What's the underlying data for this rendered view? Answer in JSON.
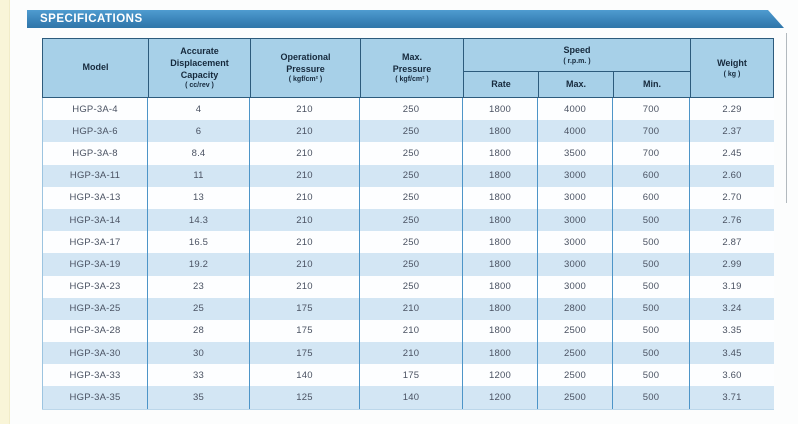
{
  "banner": {
    "label": "SPECIFICATIONS"
  },
  "table": {
    "headers": {
      "model": {
        "label": "Model"
      },
      "capacity": {
        "label": "Accurate\nDisplacement\nCapacity",
        "unit": "( cc/rev )"
      },
      "operational_pressure": {
        "label": "Operational\nPressure",
        "unit": "( kgf/cm² )"
      },
      "max_pressure": {
        "label": "Max.\nPressure",
        "unit": "( kgf/cm² )"
      },
      "speed": {
        "label": "Speed",
        "unit": "( r.p.m. )",
        "sub": {
          "rate": "Rate",
          "max": "Max.",
          "min": "Min."
        }
      },
      "weight": {
        "label": "Weight",
        "unit": "( kg )"
      }
    },
    "rows": [
      {
        "model": "HGP-3A-4",
        "capacity": "4",
        "op_pressure": "210",
        "max_pressure": "250",
        "rate": "1800",
        "max": "4000",
        "min": "700",
        "weight": "2.29"
      },
      {
        "model": "HGP-3A-6",
        "capacity": "6",
        "op_pressure": "210",
        "max_pressure": "250",
        "rate": "1800",
        "max": "4000",
        "min": "700",
        "weight": "2.37"
      },
      {
        "model": "HGP-3A-8",
        "capacity": "8.4",
        "op_pressure": "210",
        "max_pressure": "250",
        "rate": "1800",
        "max": "3500",
        "min": "700",
        "weight": "2.45"
      },
      {
        "model": "HGP-3A-11",
        "capacity": "11",
        "op_pressure": "210",
        "max_pressure": "250",
        "rate": "1800",
        "max": "3000",
        "min": "600",
        "weight": "2.60"
      },
      {
        "model": "HGP-3A-13",
        "capacity": "13",
        "op_pressure": "210",
        "max_pressure": "250",
        "rate": "1800",
        "max": "3000",
        "min": "600",
        "weight": "2.70"
      },
      {
        "model": "HGP-3A-14",
        "capacity": "14.3",
        "op_pressure": "210",
        "max_pressure": "250",
        "rate": "1800",
        "max": "3000",
        "min": "500",
        "weight": "2.76"
      },
      {
        "model": "HGP-3A-17",
        "capacity": "16.5",
        "op_pressure": "210",
        "max_pressure": "250",
        "rate": "1800",
        "max": "3000",
        "min": "500",
        "weight": "2.87"
      },
      {
        "model": "HGP-3A-19",
        "capacity": "19.2",
        "op_pressure": "210",
        "max_pressure": "250",
        "rate": "1800",
        "max": "3000",
        "min": "500",
        "weight": "2.99"
      },
      {
        "model": "HGP-3A-23",
        "capacity": "23",
        "op_pressure": "210",
        "max_pressure": "250",
        "rate": "1800",
        "max": "3000",
        "min": "500",
        "weight": "3.19"
      },
      {
        "model": "HGP-3A-25",
        "capacity": "25",
        "op_pressure": "175",
        "max_pressure": "210",
        "rate": "1800",
        "max": "2800",
        "min": "500",
        "weight": "3.24"
      },
      {
        "model": "HGP-3A-28",
        "capacity": "28",
        "op_pressure": "175",
        "max_pressure": "210",
        "rate": "1800",
        "max": "2500",
        "min": "500",
        "weight": "3.35"
      },
      {
        "model": "HGP-3A-30",
        "capacity": "30",
        "op_pressure": "175",
        "max_pressure": "210",
        "rate": "1800",
        "max": "2500",
        "min": "500",
        "weight": "3.45"
      },
      {
        "model": "HGP-3A-33",
        "capacity": "33",
        "op_pressure": "140",
        "max_pressure": "175",
        "rate": "1200",
        "max": "2500",
        "min": "500",
        "weight": "3.60"
      },
      {
        "model": "HGP-3A-35",
        "capacity": "35",
        "op_pressure": "125",
        "max_pressure": "140",
        "rate": "1200",
        "max": "2500",
        "min": "500",
        "weight": "3.71"
      }
    ]
  },
  "colors": {
    "banner_blue": "#3b85ba",
    "header_fill": "#a7d0e8",
    "header_border": "#2d5b7c",
    "header_text": "#16293c",
    "row_alt_fill": "#d3e6f4",
    "row_fill": "#fdfeff",
    "grid_line_blue": "#4d95c8",
    "data_text": "#4a5262",
    "page_edge_strip": "#f9f5d8"
  }
}
